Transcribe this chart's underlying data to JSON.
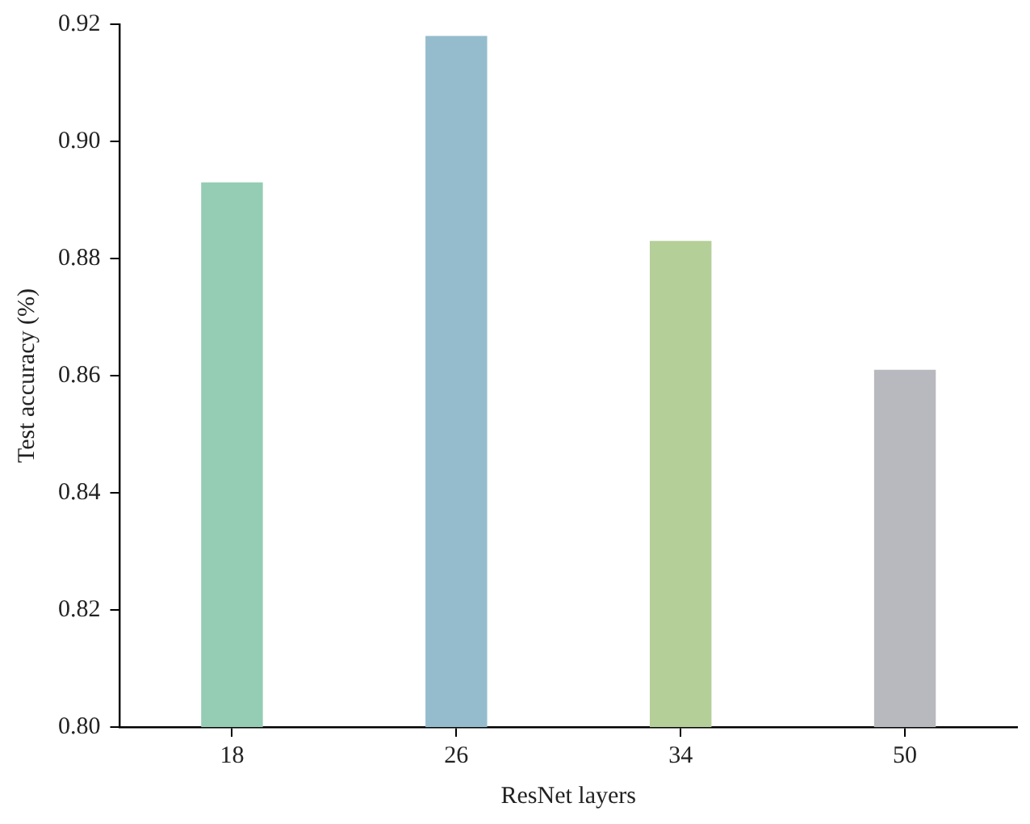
{
  "chart_data": {
    "type": "bar",
    "xlabel": "ResNet layers",
    "ylabel": "Test accuracy (%)",
    "categories": [
      "18",
      "26",
      "34",
      "50"
    ],
    "values": [
      0.893,
      0.918,
      0.883,
      0.861
    ],
    "colors": [
      "#94cdb4",
      "#94bccc",
      "#b4cf98",
      "#b8b9be"
    ],
    "ylim": [
      0.8,
      0.92
    ],
    "yticks": [
      {
        "value": 0.8,
        "label": "0.80"
      },
      0.82,
      0.84,
      0.86,
      0.88,
      {
        "value": 0.9,
        "label": "0.90"
      },
      0.92
    ],
    "grid": false,
    "legend": false
  }
}
